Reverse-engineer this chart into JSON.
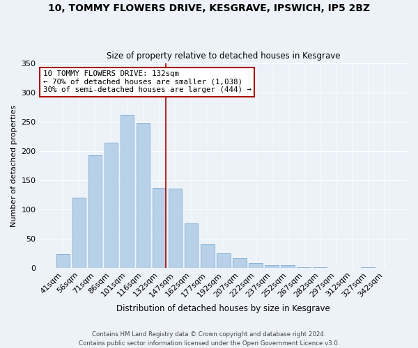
{
  "title": "10, TOMMY FLOWERS DRIVE, KESGRAVE, IPSWICH, IP5 2BZ",
  "subtitle": "Size of property relative to detached houses in Kesgrave",
  "xlabel": "Distribution of detached houses by size in Kesgrave",
  "ylabel": "Number of detached properties",
  "categories": [
    "41sqm",
    "56sqm",
    "71sqm",
    "86sqm",
    "101sqm",
    "116sqm",
    "132sqm",
    "147sqm",
    "162sqm",
    "177sqm",
    "192sqm",
    "207sqm",
    "222sqm",
    "237sqm",
    "252sqm",
    "267sqm",
    "282sqm",
    "297sqm",
    "312sqm",
    "327sqm",
    "342sqm"
  ],
  "values": [
    24,
    120,
    193,
    214,
    262,
    248,
    137,
    136,
    76,
    40,
    25,
    16,
    8,
    5,
    4,
    1,
    1,
    0,
    0,
    1,
    0
  ],
  "bar_color": "#b8d0e8",
  "bar_edge_color": "#7aadd4",
  "vline_index": 6,
  "vline_color": "#aa0000",
  "annotation_title": "10 TOMMY FLOWERS DRIVE: 132sqm",
  "annotation_line1": "← 70% of detached houses are smaller (1,038)",
  "annotation_line2": "30% of semi-detached houses are larger (444) →",
  "annotation_box_facecolor": "#ffffff",
  "annotation_box_edgecolor": "#aa0000",
  "ylim": [
    0,
    350
  ],
  "yticks": [
    0,
    50,
    100,
    150,
    200,
    250,
    300,
    350
  ],
  "footer1": "Contains HM Land Registry data © Crown copyright and database right 2024.",
  "footer2": "Contains public sector information licensed under the Open Government Licence v3.0.",
  "background_color": "#edf2f9"
}
